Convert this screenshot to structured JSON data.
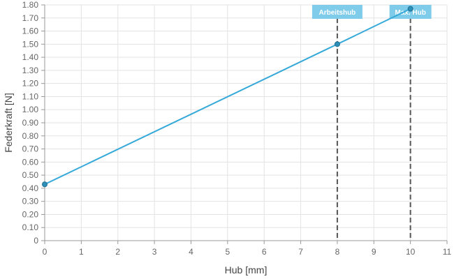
{
  "chart_data": {
    "type": "line",
    "xlabel": "Hub [mm]",
    "ylabel": "Federkraft [N]",
    "xlim": [
      0,
      11
    ],
    "ylim": [
      0,
      1.8
    ],
    "x_ticks": [
      0,
      1,
      2,
      3,
      4,
      5,
      6,
      7,
      8,
      9,
      10,
      11
    ],
    "x_tick_labels": [
      "0",
      "1",
      "2",
      "3",
      "4",
      "5",
      "6",
      "7",
      "8",
      "9",
      "10",
      "11"
    ],
    "y_ticks": [
      0,
      0.1,
      0.2,
      0.3,
      0.4,
      0.5,
      0.6,
      0.7,
      0.8,
      0.9,
      1.0,
      1.1,
      1.2,
      1.3,
      1.4,
      1.5,
      1.6,
      1.7,
      1.8
    ],
    "y_tick_labels": [
      "0",
      "0.10",
      "0.20",
      "0.30",
      "0.40",
      "0.50",
      "0.60",
      "0.70",
      "0.80",
      "0.90",
      "1.00",
      "1.10",
      "1.20",
      "1.30",
      "1.40",
      "1.50",
      "1.60",
      "1.70",
      "1.80"
    ],
    "grid": true,
    "series": [
      {
        "points": [
          {
            "x": 0,
            "y": 0.43
          },
          {
            "x": 8,
            "y": 1.5
          },
          {
            "x": 10,
            "y": 1.77
          }
        ],
        "color": "#35a9d9"
      }
    ],
    "markers": [
      {
        "label": "Arbeitshub",
        "x": 8
      },
      {
        "label": "Max. Hub",
        "x": 10
      }
    ],
    "colors": {
      "line": "#35a9d9",
      "point_fill": "#2c8fb8",
      "point_stroke": "#1f6f91",
      "marker_line": "#555555",
      "marker_label_bg": "#7fcbea",
      "grid": "#e3e3e3",
      "axis": "#999999"
    }
  }
}
